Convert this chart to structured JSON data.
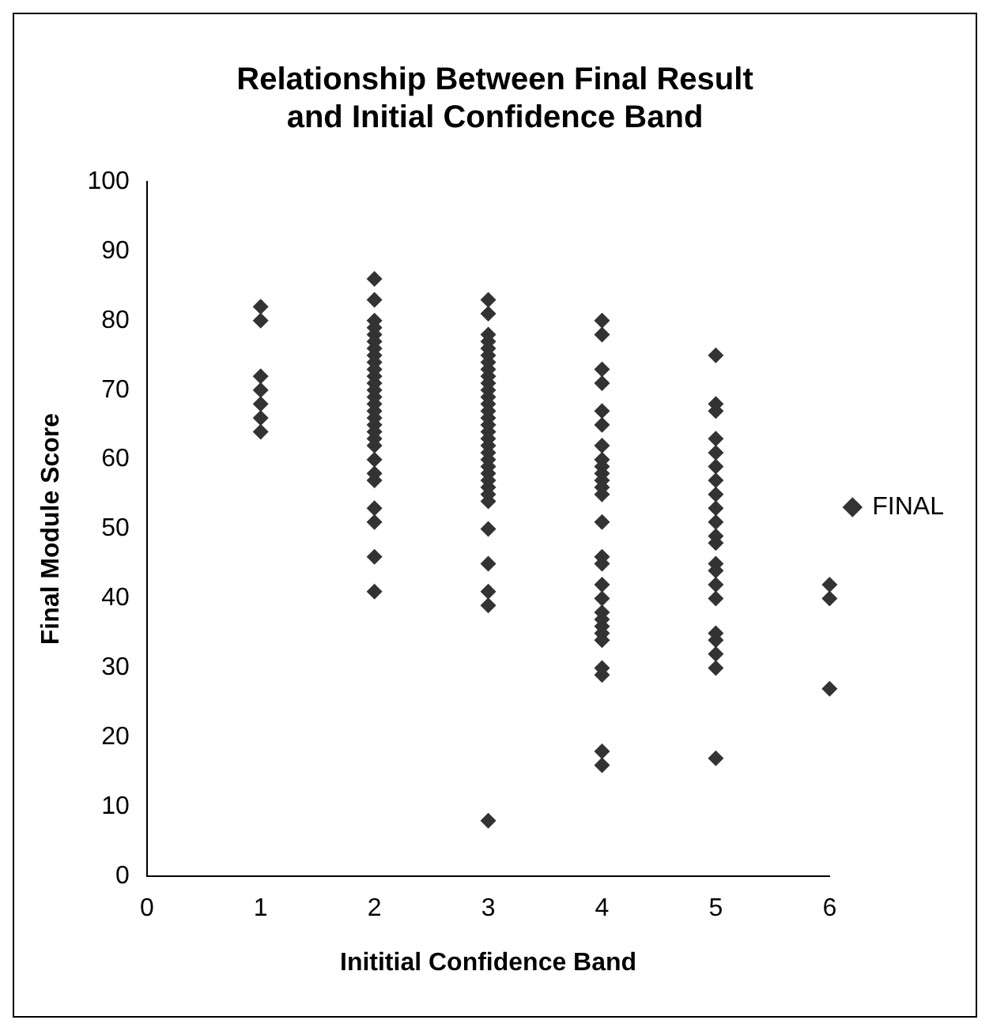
{
  "chart_data": {
    "type": "scatter",
    "title": [
      "Relationship Between Final Result",
      "and Initial Confidence Band"
    ],
    "xlabel": "Inititial Confidence Band",
    "ylabel": "Final Module Score",
    "xlim": [
      0,
      6
    ],
    "xticks": [
      0,
      1,
      2,
      3,
      4,
      5,
      6
    ],
    "ylim": [
      0,
      100
    ],
    "yticks": [
      0,
      10,
      20,
      30,
      40,
      50,
      60,
      70,
      80,
      90,
      100
    ],
    "grid": false,
    "legend": "right",
    "marker": "diamond",
    "series": [
      {
        "name": "FINAL",
        "color": "#333333",
        "x": [
          1,
          1,
          1,
          1,
          1,
          1,
          1,
          2,
          2,
          2,
          2,
          2,
          2,
          2,
          2,
          2,
          2,
          2,
          2,
          2,
          2,
          2,
          2,
          2,
          2,
          2,
          2,
          2,
          2,
          2,
          2,
          2,
          2,
          2,
          2,
          3,
          3,
          3,
          3,
          3,
          3,
          3,
          3,
          3,
          3,
          3,
          3,
          3,
          3,
          3,
          3,
          3,
          3,
          3,
          3,
          3,
          3,
          3,
          3,
          3,
          3,
          3,
          3,
          3,
          3,
          3,
          3,
          4,
          4,
          4,
          4,
          4,
          4,
          4,
          4,
          4,
          4,
          4,
          4,
          4,
          4,
          4,
          4,
          4,
          4,
          4,
          4,
          4,
          4,
          4,
          4,
          4,
          4,
          4,
          5,
          5,
          5,
          5,
          5,
          5,
          5,
          5,
          5,
          5,
          5,
          5,
          5,
          5,
          5,
          5,
          5,
          5,
          5,
          5,
          5,
          6,
          6,
          6
        ],
        "values": [
          82,
          80,
          72,
          70,
          68,
          66,
          64,
          86,
          83,
          80,
          79,
          78,
          77,
          76,
          75,
          74,
          73,
          72,
          71,
          70,
          69,
          68,
          67,
          66,
          65,
          64,
          63,
          62,
          60,
          58,
          57,
          53,
          51,
          46,
          41,
          83,
          81,
          78,
          77,
          76,
          75,
          74,
          73,
          72,
          71,
          70,
          69,
          68,
          67,
          66,
          65,
          64,
          63,
          62,
          61,
          60,
          59,
          58,
          57,
          56,
          55,
          54,
          50,
          45,
          41,
          39,
          8,
          80,
          78,
          73,
          71,
          67,
          65,
          62,
          60,
          59,
          58,
          57,
          56,
          55,
          51,
          46,
          45,
          42,
          40,
          38,
          37,
          36,
          35,
          34,
          30,
          29,
          18,
          16,
          75,
          68,
          67,
          63,
          61,
          59,
          57,
          55,
          53,
          51,
          49,
          48,
          45,
          44,
          42,
          40,
          35,
          34,
          32,
          30,
          17,
          42,
          40,
          27
        ]
      }
    ]
  }
}
